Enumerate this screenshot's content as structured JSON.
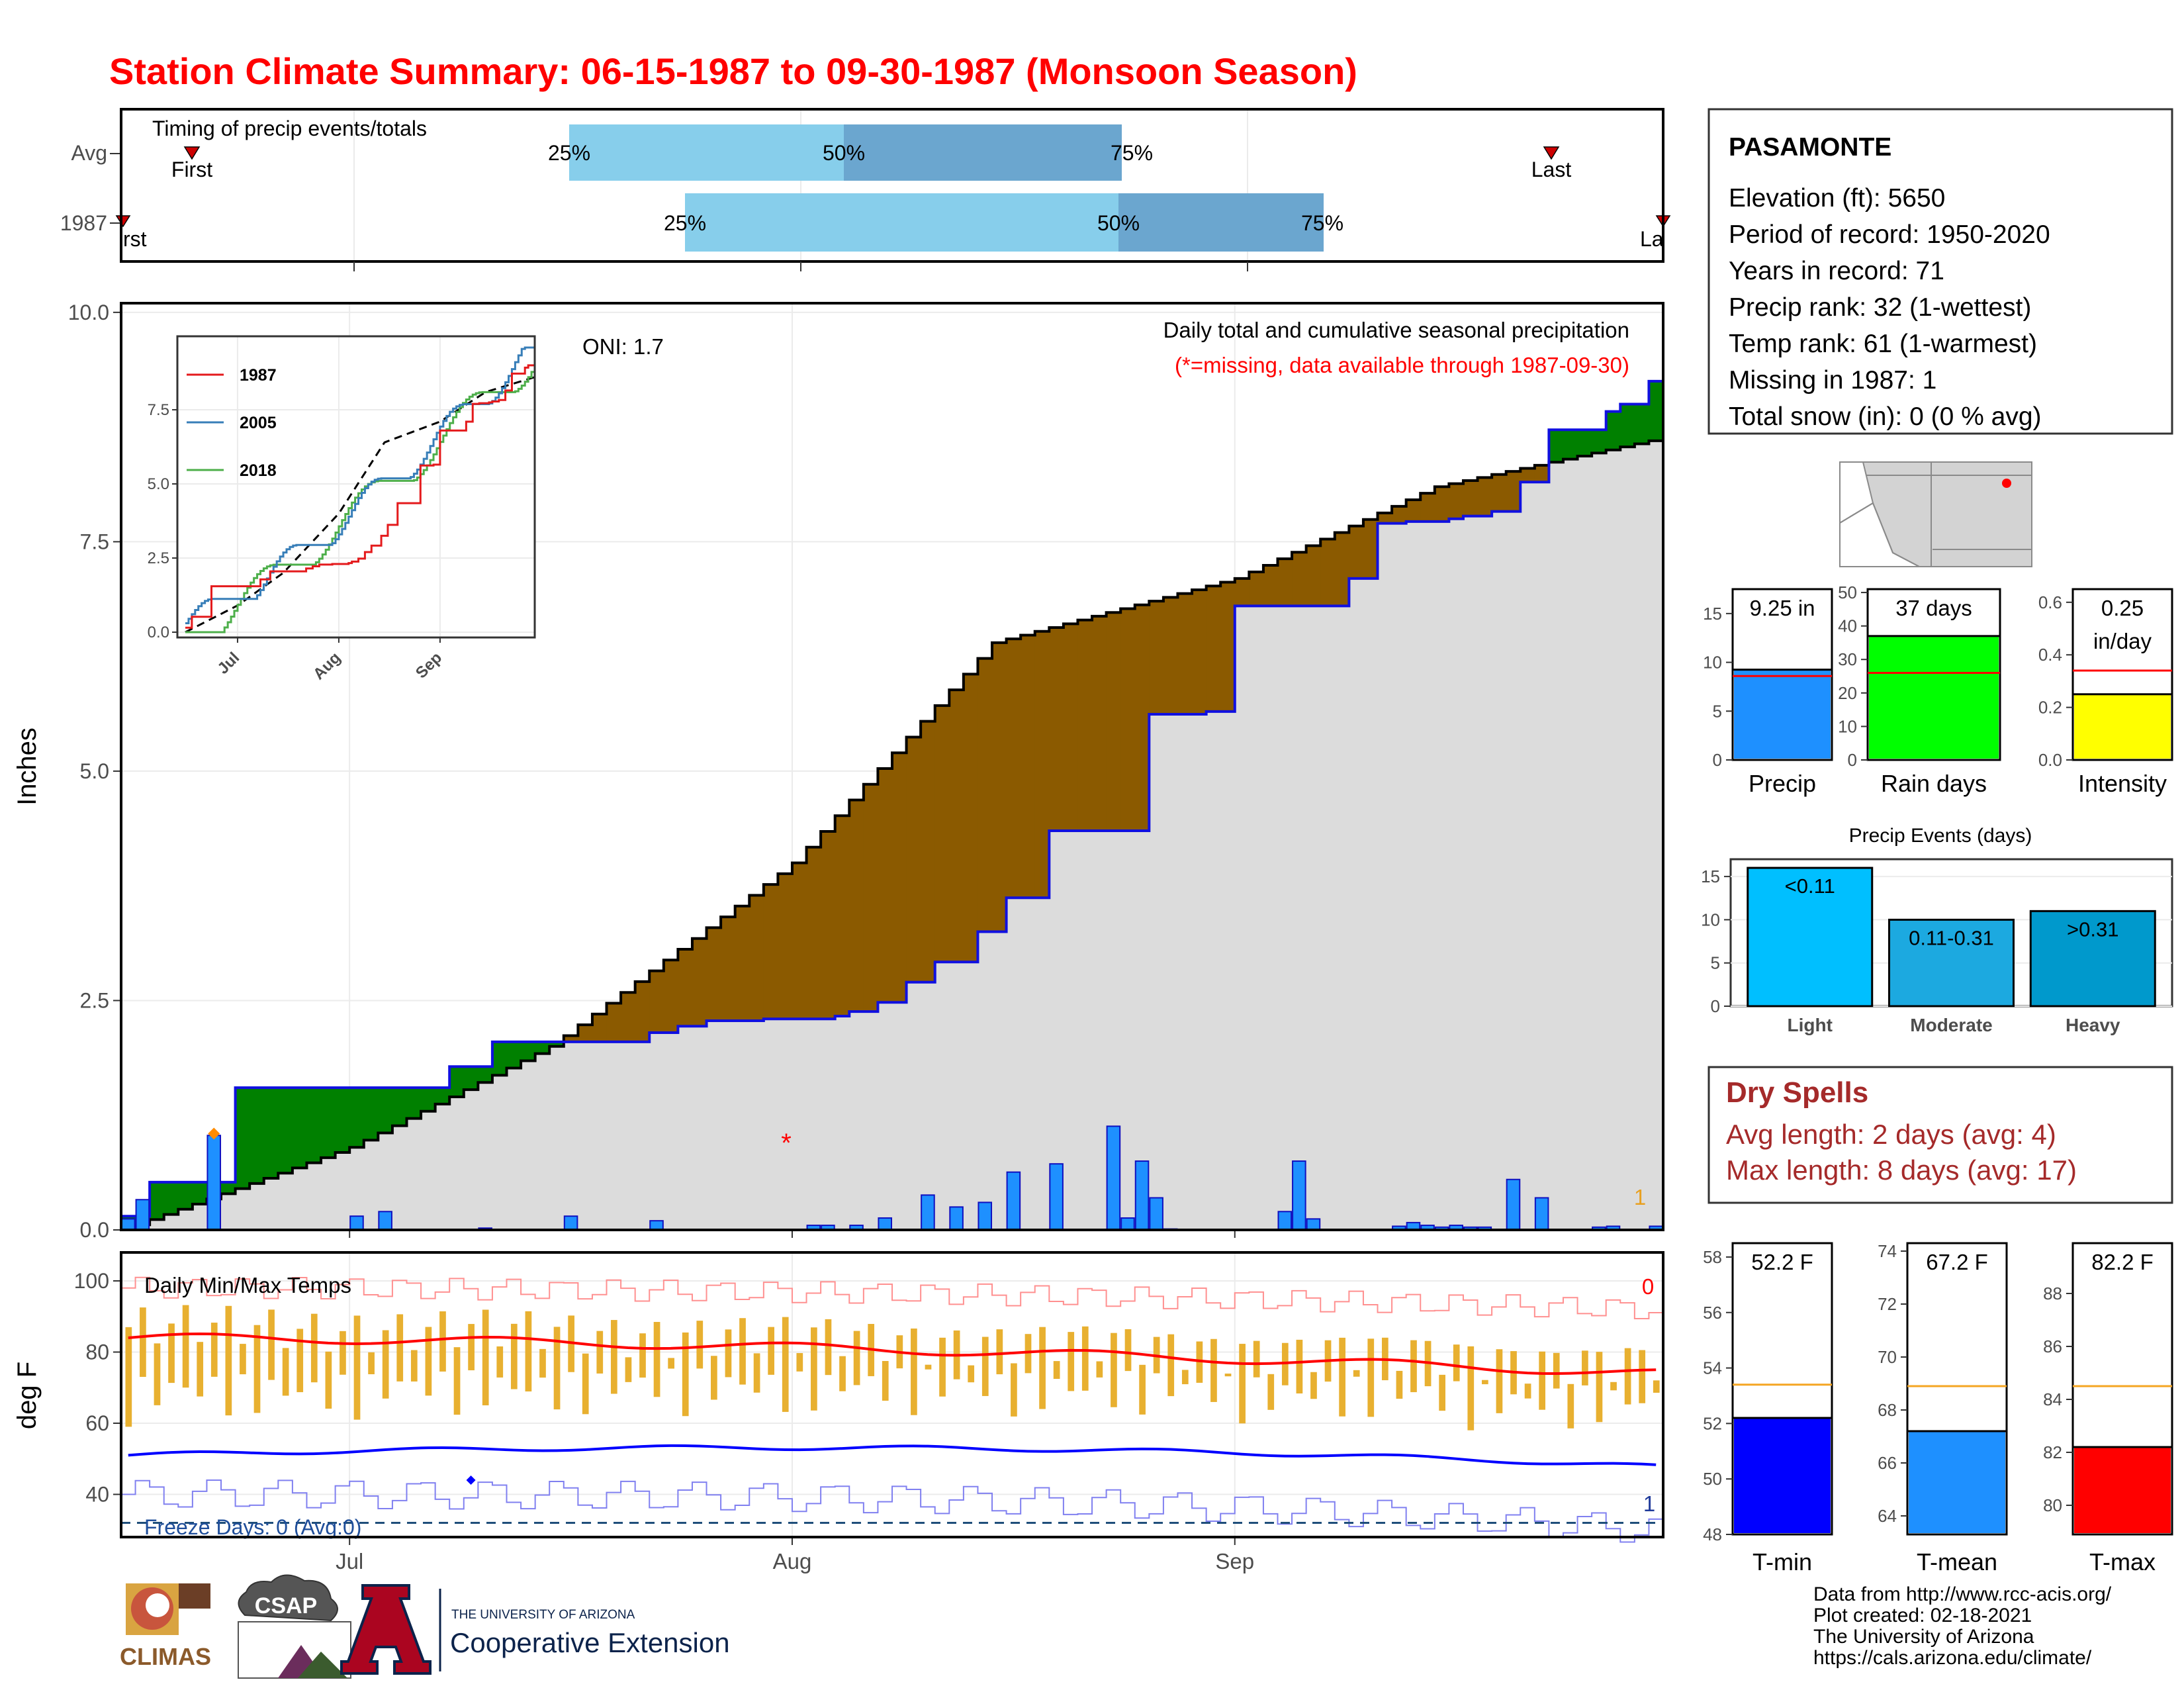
{
  "title": "Station Climate Summary: 06-15-1987 to 09-30-1987 (Monsoon Season)",
  "colors": {
    "title": "#ff0000",
    "wet": "#008000",
    "dry": "#8b5a00",
    "cum_avg": "#dcdcdc",
    "daily_bar": "#1e90ff",
    "temp_bar": "#e8b030",
    "tmax_line": "#ff0000",
    "tmin_line": "#0000ff"
  },
  "timing_panel": {
    "label": "Timing of precip events/totals",
    "rows": [
      "Avg",
      "1987"
    ],
    "first_label": "First",
    "last_label": "Last",
    "avg_pcts": [
      "25%",
      "50%",
      "75%"
    ],
    "y1987_pcts": [
      "25%",
      "50%",
      "75%"
    ],
    "avg_first_partial": "",
    "y1987_first_partial": "rst",
    "y1987_last_partial": "La"
  },
  "main_panel": {
    "y_label": "Inches",
    "y_ticks": [
      "0.0",
      "2.5",
      "5.0",
      "7.5",
      "10.0"
    ],
    "oni": "ONI: 1.7",
    "caption": "Daily total and cumulative seasonal precipitation",
    "missing_note": "(*=missing, data available through 1987-09-30)",
    "missing_count_label": "1"
  },
  "inset": {
    "y_ticks": [
      "0.0",
      "2.5",
      "5.0",
      "7.5"
    ],
    "x_ticks": [
      "Jul",
      "Aug",
      "Sep"
    ],
    "legend": [
      "1987",
      "2005",
      "2018"
    ],
    "legend_colors": [
      "#e41a1c",
      "#377eb8",
      "#4daf4a"
    ]
  },
  "temp_panel": {
    "y_label": "deg F",
    "title": "Daily Min/Max Temps",
    "y_ticks": [
      "40",
      "60",
      "80",
      "100"
    ],
    "x_ticks": [
      "Jul",
      "Aug",
      "Sep"
    ],
    "freeze_label": "Freeze Days: 0 (Avg:0)",
    "max_count_label": "0",
    "min_count_label": "1"
  },
  "station_box": {
    "name": "PASAMONTE",
    "lines": [
      "Elevation (ft): 5650",
      "Period of record: 1950-2020",
      "Years in record: 71",
      "Precip rank: 32 (1-wettest)",
      "Temp rank: 61 (1-warmest)",
      "Missing in 1987: 1",
      "Total snow (in): 0 (0 % avg)"
    ]
  },
  "summary_bars": {
    "precip": {
      "label": "9.25 in",
      "name": "Precip",
      "value": 9.25,
      "avg": 8.6,
      "ymax": 17.5,
      "ticks": [
        "0",
        "5",
        "10",
        "15"
      ],
      "tick_values": [
        0,
        5,
        10,
        15
      ],
      "color": "#1e90ff"
    },
    "rain_days": {
      "label": "37 days",
      "name": "Rain days",
      "value": 37,
      "avg": 26,
      "ymax": 51,
      "ticks": [
        "0",
        "10",
        "20",
        "30",
        "40",
        "50"
      ],
      "tick_values": [
        0,
        10,
        20,
        30,
        40,
        50
      ],
      "color": "#00ff00"
    },
    "intensity": {
      "label": "0.25 in/day",
      "label_lines": [
        "0.25",
        "in/day"
      ],
      "name": "Intensity",
      "value": 0.25,
      "avg": 0.34,
      "ymax": 0.65,
      "ticks": [
        "0.0",
        "0.2",
        "0.4",
        "0.6"
      ],
      "tick_values": [
        0,
        0.2,
        0.4,
        0.6
      ],
      "color": "#ffff00"
    }
  },
  "precip_events": {
    "title": "Precip Events (days)",
    "categories": [
      "Light",
      "Moderate",
      "Heavy"
    ],
    "labels": [
      "<0.11",
      "0.11-0.31",
      ">0.31"
    ],
    "values": [
      16,
      10,
      11
    ],
    "colors": [
      "#00bfff",
      "#1ca9e0",
      "#0099cc"
    ],
    "ticks": [
      "0",
      "5",
      "10",
      "15"
    ],
    "tick_values": [
      0,
      5,
      10,
      15
    ],
    "ymax": 17
  },
  "dry_spells": {
    "title": "Dry Spells",
    "lines": [
      "Avg length: 2 days (avg: 4)",
      "Max length: 8 days (avg: 17)"
    ]
  },
  "temp_bars": {
    "tmin": {
      "label": "52.2 F",
      "name": "T-min",
      "value": 52.2,
      "avg": 53.4,
      "ymin": 48,
      "ymax": 58.5,
      "ticks": [
        "48",
        "50",
        "52",
        "54",
        "56",
        "58"
      ],
      "tick_values": [
        48,
        50,
        52,
        54,
        56,
        58
      ],
      "color": "#0000ff"
    },
    "tmean": {
      "label": "67.2 F",
      "name": "T-mean",
      "value": 67.2,
      "avg": 68.9,
      "ymin": 63.3,
      "ymax": 74.3,
      "ticks": [
        "64",
        "66",
        "68",
        "70",
        "72",
        "74"
      ],
      "tick_values": [
        64,
        66,
        68,
        70,
        72,
        74
      ],
      "color": "#1e90ff"
    },
    "tmax": {
      "label": "82.2 F",
      "name": "T-max",
      "value": 82.2,
      "avg": 84.5,
      "ymin": 78.9,
      "ymax": 89.9,
      "ticks": [
        "80",
        "82",
        "84",
        "86",
        "88"
      ],
      "tick_values": [
        80,
        82,
        84,
        86,
        88
      ],
      "color": "#ff0000"
    }
  },
  "footer": {
    "lines": [
      "Data from http://www.rcc-acis.org/",
      "Plot created: 02-18-2021",
      "The University of Arizona",
      "https://cals.arizona.edu/climate/"
    ],
    "logo_climas": "CLIMAS",
    "logo_csap": "CSAP",
    "ua_line1": "THE UNIVERSITY OF ARIZONA",
    "ua_line2": "Cooperative Extension"
  },
  "chart_data": {
    "type": "area",
    "title": "Station Climate Summary: 06-15-1987 to 09-30-1987 (Monsoon Season)",
    "xlabel": "",
    "ylabel": "Inches",
    "ylim": [
      0,
      10.1
    ],
    "x_ticks": [
      "Jul",
      "Aug",
      "Sep"
    ],
    "series": [
      {
        "name": "1987",
        "type": "step",
        "x": [
          "06-15",
          "06-17",
          "06-23",
          "07-08",
          "07-11",
          "07-15",
          "07-22",
          "07-24",
          "07-26",
          "07-28",
          "07-30",
          "08-04",
          "08-05",
          "08-07",
          "08-09",
          "08-11",
          "08-14",
          "08-16",
          "08-19",
          "08-21",
          "08-24",
          "08-26",
          "08-30",
          "09-01",
          "09-09",
          "09-11",
          "09-13",
          "09-16",
          "09-17",
          "09-19",
          "09-21",
          "09-23",
          "09-27",
          "09-28",
          "09-30"
        ],
        "values": [
          0.15,
          0.52,
          1.55,
          1.78,
          2.05,
          2.05,
          2.15,
          2.22,
          2.28,
          2.28,
          2.3,
          2.33,
          2.38,
          2.48,
          2.7,
          2.92,
          3.25,
          3.62,
          4.35,
          4.35,
          4.35,
          5.62,
          5.65,
          6.8,
          7.1,
          7.7,
          7.72,
          7.75,
          7.78,
          7.83,
          8.15,
          8.72,
          8.92,
          9.0,
          9.25
        ]
      },
      {
        "name": "Cumulative avg",
        "type": "step",
        "x": [
          "06-15",
          "07-01",
          "07-15",
          "08-01",
          "08-15",
          "09-01",
          "09-15",
          "09-30"
        ],
        "values": [
          0.0,
          0.9,
          2.0,
          4.0,
          6.4,
          7.1,
          8.1,
          8.6
        ]
      }
    ],
    "daily_precip": {
      "x": [
        "06-15",
        "06-16",
        "06-21",
        "07-01",
        "07-03",
        "07-10",
        "07-16",
        "07-22",
        "08-02",
        "08-03",
        "08-05",
        "08-07",
        "08-10",
        "08-12",
        "08-14",
        "08-16",
        "08-19",
        "08-23",
        "08-24",
        "08-25",
        "08-26",
        "08-27",
        "09-04",
        "09-05",
        "09-06",
        "09-12",
        "09-13",
        "09-14",
        "09-15",
        "09-16",
        "09-17",
        "09-18",
        "09-20",
        "09-22",
        "09-26",
        "09-27",
        "09-30"
      ],
      "values": [
        0.12,
        0.33,
        1.03,
        0.15,
        0.2,
        0.02,
        0.15,
        0.1,
        0.05,
        0.05,
        0.05,
        0.13,
        0.38,
        0.25,
        0.3,
        0.63,
        0.72,
        1.13,
        0.13,
        0.75,
        0.35,
        0.01,
        0.2,
        0.75,
        0.12,
        0.04,
        0.08,
        0.05,
        0.03,
        0.05,
        0.03,
        0.03,
        0.55,
        0.35,
        0.03,
        0.04,
        0.04
      ],
      "missing": [
        "07-30"
      ],
      "missing_value": 1.0,
      "orange_marker": {
        "x": "06-21",
        "value": 1.05
      }
    },
    "temperature": {
      "ylim": [
        28,
        108
      ],
      "freeze_line": 32,
      "x_ticks": [
        "Jul",
        "Aug",
        "Sep"
      ],
      "avg_tmax_start": 84,
      "avg_tmax_end": 74,
      "avg_tmin_start": 51,
      "avg_tmin_end": 43,
      "record_tmax": 100,
      "record_tmin": 40
    }
  }
}
